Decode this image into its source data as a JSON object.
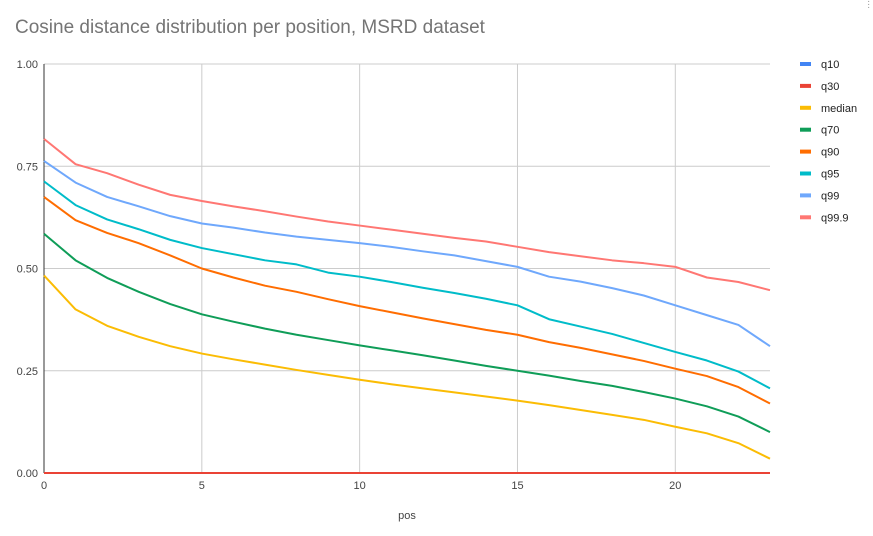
{
  "chart_data": {
    "type": "line",
    "title": "Cosine distance distribution per position, MSRD dataset",
    "xlabel": "pos",
    "ylabel": "",
    "xlim": [
      0,
      23
    ],
    "ylim": [
      0,
      1
    ],
    "xticks": [
      "0",
      "5",
      "10",
      "15",
      "20"
    ],
    "yticks": [
      "0.00",
      "0.25",
      "0.50",
      "0.75",
      "1.00"
    ],
    "grid": true,
    "legend": "right",
    "x": [
      0,
      1,
      2,
      3,
      4,
      5,
      6,
      7,
      8,
      9,
      10,
      11,
      12,
      13,
      14,
      15,
      16,
      17,
      18,
      19,
      20,
      21,
      22,
      23
    ],
    "series": [
      {
        "name": "q10",
        "color": "#4285f4",
        "values": [
          0,
          0,
          0,
          0,
          0,
          0,
          0,
          0,
          0,
          0,
          0,
          0,
          0,
          0,
          0,
          0,
          0,
          0,
          0,
          0,
          0,
          0,
          0,
          0
        ]
      },
      {
        "name": "q30",
        "color": "#ea4335",
        "values": [
          0,
          0,
          0,
          0,
          0,
          0,
          0,
          0,
          0,
          0,
          0,
          0,
          0,
          0,
          0,
          0,
          0,
          0,
          0,
          0,
          0,
          0,
          0,
          0
        ]
      },
      {
        "name": "median",
        "color": "#fbbc04",
        "values": [
          0.483,
          0.4,
          0.36,
          0.333,
          0.31,
          0.292,
          0.278,
          0.265,
          0.252,
          0.24,
          0.228,
          0.217,
          0.207,
          0.197,
          0.187,
          0.177,
          0.166,
          0.154,
          0.142,
          0.13,
          0.113,
          0.097,
          0.073,
          0.035
        ]
      },
      {
        "name": "q70",
        "color": "#0f9d58",
        "values": [
          0.585,
          0.52,
          0.477,
          0.443,
          0.413,
          0.388,
          0.37,
          0.353,
          0.338,
          0.325,
          0.312,
          0.3,
          0.288,
          0.275,
          0.262,
          0.25,
          0.238,
          0.225,
          0.213,
          0.198,
          0.182,
          0.163,
          0.138,
          0.1
        ]
      },
      {
        "name": "q90",
        "color": "#ff6d01",
        "values": [
          0.675,
          0.618,
          0.587,
          0.562,
          0.532,
          0.5,
          0.478,
          0.458,
          0.443,
          0.425,
          0.408,
          0.393,
          0.378,
          0.364,
          0.35,
          0.338,
          0.32,
          0.306,
          0.29,
          0.274,
          0.255,
          0.237,
          0.21,
          0.17
        ]
      },
      {
        "name": "q95",
        "color": "#00bcc9",
        "values": [
          0.713,
          0.655,
          0.62,
          0.596,
          0.57,
          0.55,
          0.535,
          0.52,
          0.51,
          0.49,
          0.48,
          0.467,
          0.453,
          0.44,
          0.426,
          0.41,
          0.376,
          0.358,
          0.34,
          0.318,
          0.296,
          0.275,
          0.248,
          0.207
        ]
      },
      {
        "name": "q99",
        "color": "#6fa8fc",
        "values": [
          0.763,
          0.71,
          0.675,
          0.652,
          0.628,
          0.61,
          0.6,
          0.588,
          0.578,
          0.57,
          0.562,
          0.553,
          0.542,
          0.532,
          0.518,
          0.504,
          0.48,
          0.468,
          0.452,
          0.434,
          0.41,
          0.386,
          0.362,
          0.31
        ]
      },
      {
        "name": "q99.9",
        "color": "#ff7773",
        "values": [
          0.817,
          0.755,
          0.733,
          0.705,
          0.68,
          0.665,
          0.652,
          0.64,
          0.627,
          0.615,
          0.605,
          0.595,
          0.585,
          0.575,
          0.566,
          0.553,
          0.54,
          0.53,
          0.52,
          0.513,
          0.504,
          0.478,
          0.467,
          0.447
        ]
      }
    ]
  }
}
